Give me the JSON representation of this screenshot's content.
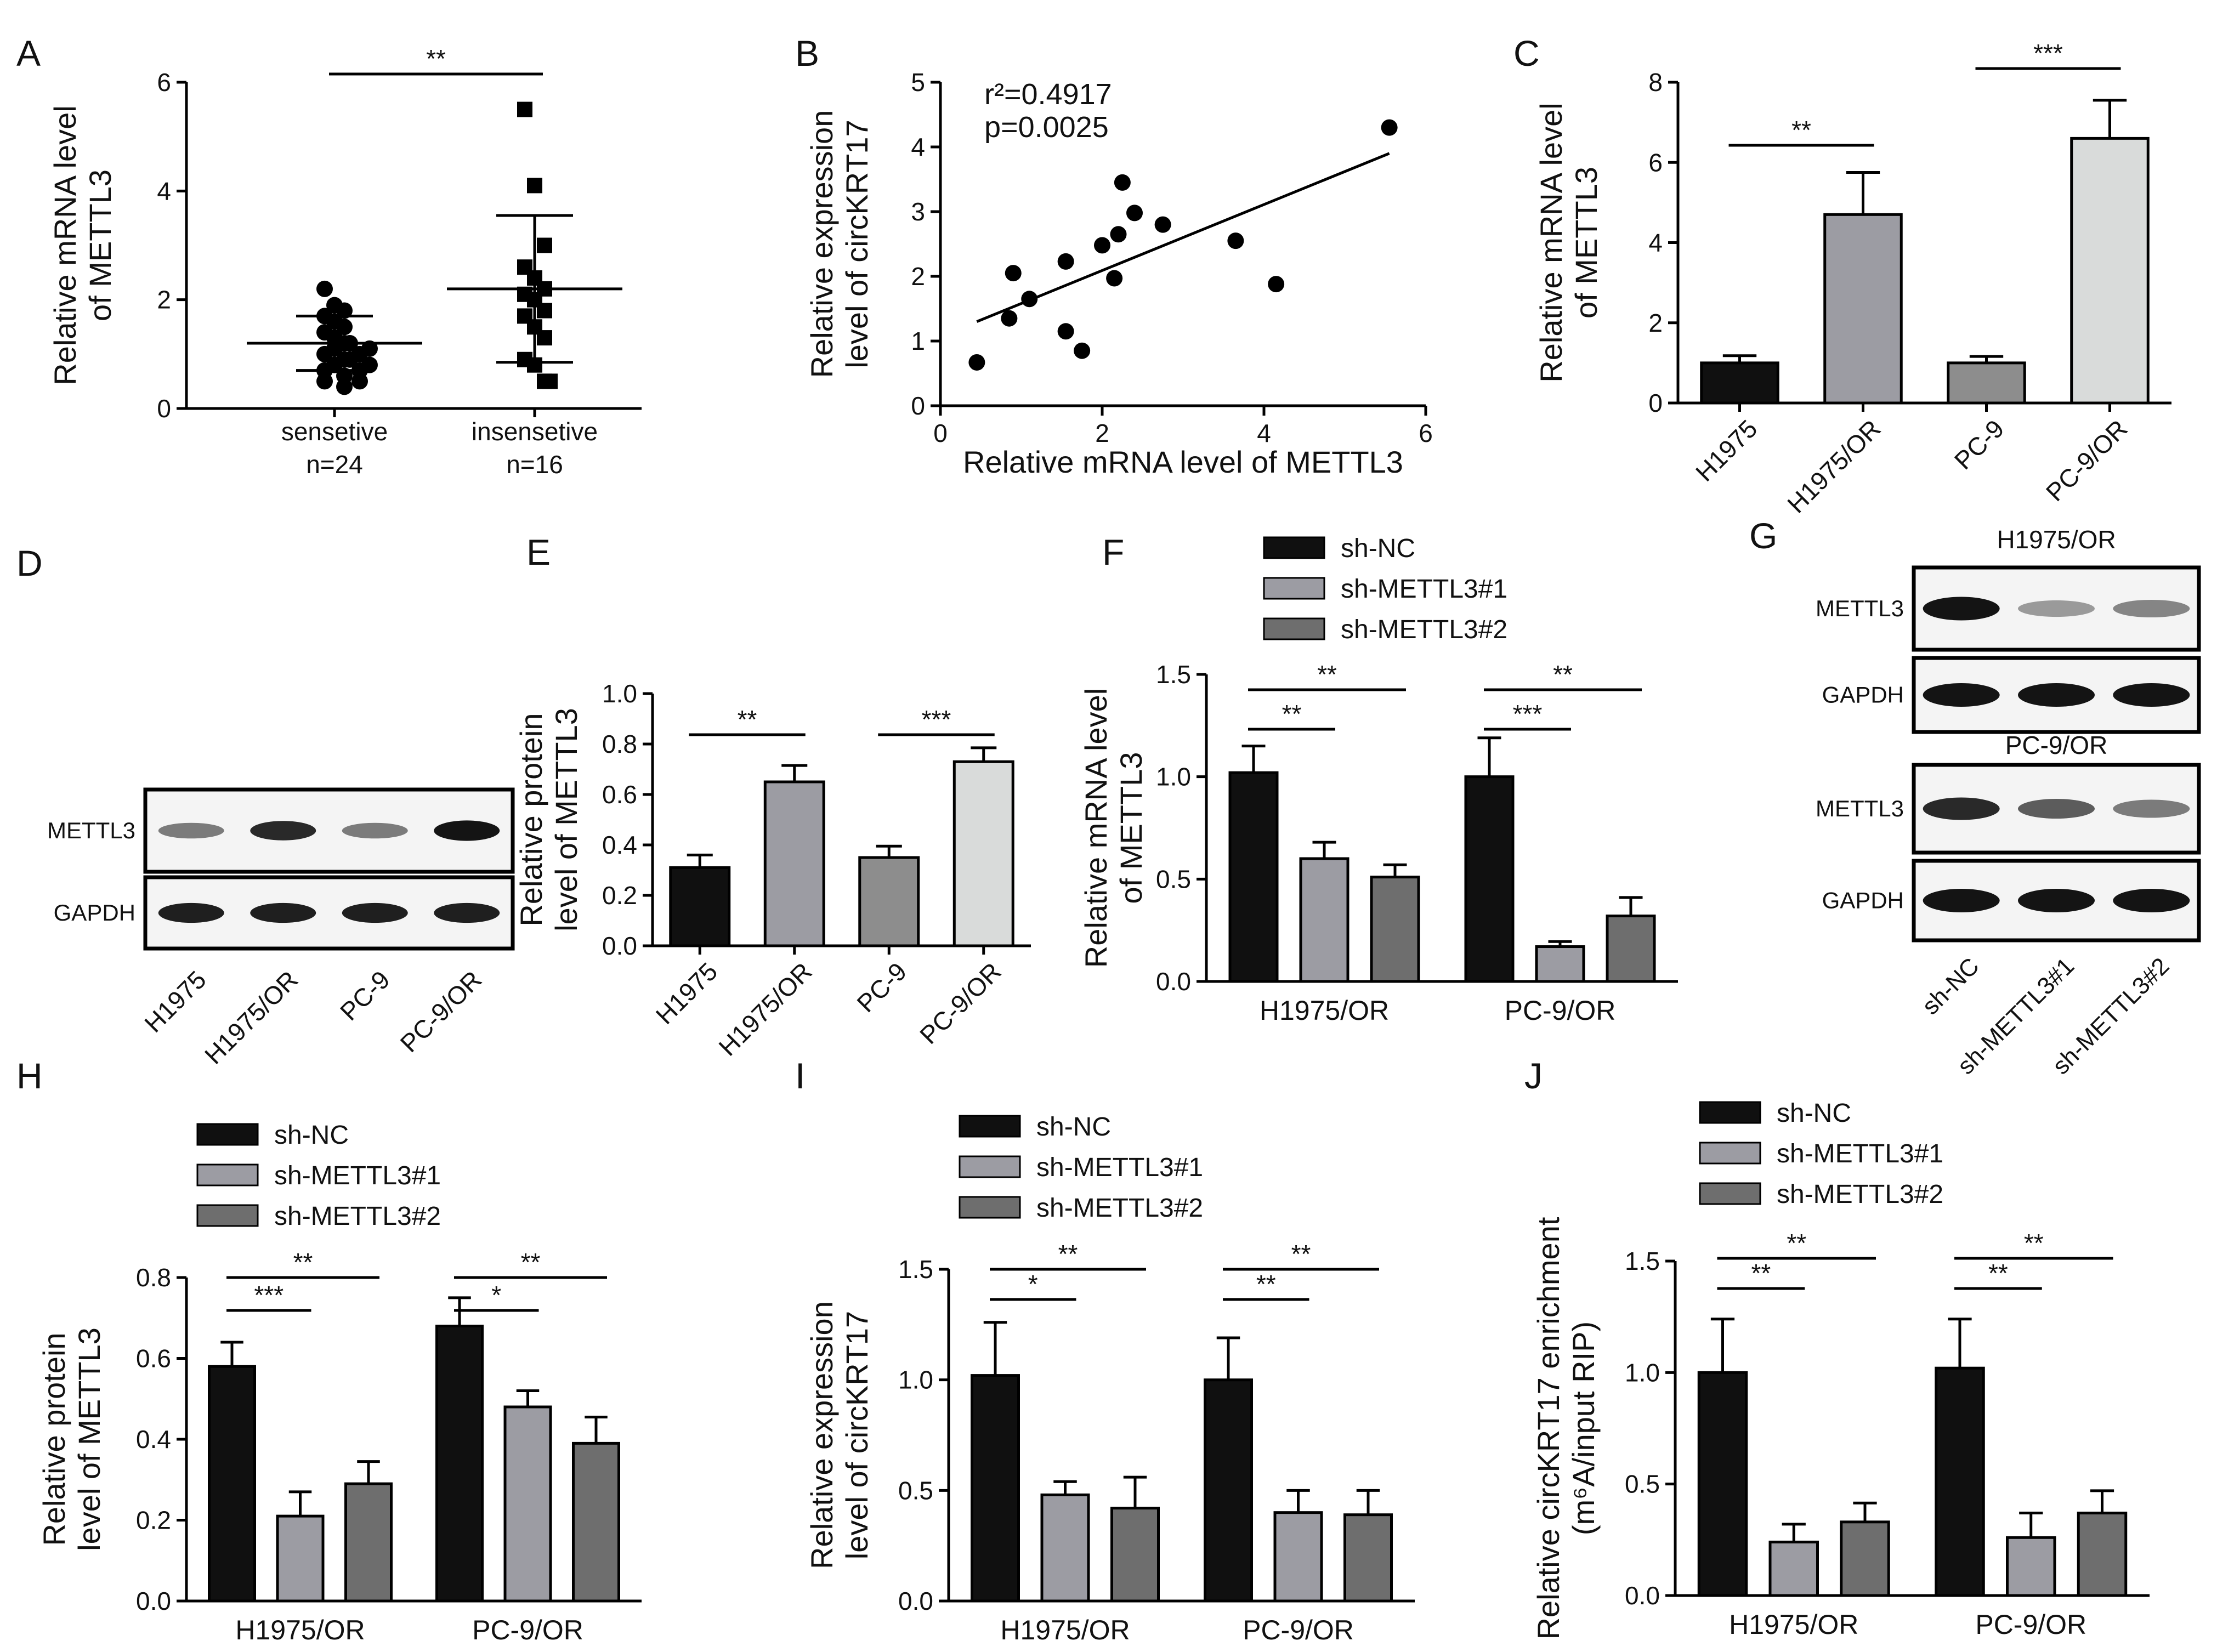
{
  "figure": {
    "colors": {
      "black": "#101010",
      "gray1": "#9c9ca3",
      "gray2": "#6e6e6e",
      "light": "#d9dbda",
      "mid": "#8d8d8d",
      "sig": "#000000",
      "text": "#111111"
    }
  },
  "chart_data": [
    {
      "panel": "A",
      "type": "scatter",
      "ylabel_lines": [
        "Relative mRNA level",
        "of METTL3"
      ],
      "ylim": [
        0,
        6
      ],
      "yticks": [
        0,
        2,
        4,
        6
      ],
      "categories": [
        "sensetive",
        "insensetive"
      ],
      "category_sub": [
        "n=24",
        "n=16"
      ],
      "series": [
        {
          "name": "sensetive",
          "marker": "circle",
          "mean": 1.2,
          "sd": 0.5,
          "points": [
            2.2,
            1.9,
            1.8,
            1.7,
            1.6,
            1.5,
            1.4,
            1.3,
            1.2,
            1.2,
            1.1,
            1.1,
            1.0,
            1.0,
            0.9,
            0.9,
            0.8,
            0.8,
            0.7,
            0.7,
            0.6,
            0.5,
            0.5,
            0.4
          ]
        },
        {
          "name": "insensetive",
          "marker": "square",
          "mean": 2.2,
          "sd": 1.35,
          "points": [
            5.5,
            4.1,
            3.0,
            2.6,
            2.4,
            2.2,
            2.1,
            2.0,
            1.8,
            1.7,
            1.5,
            1.3,
            0.9,
            0.8,
            0.5,
            0.5
          ]
        }
      ],
      "sig": [
        {
          "from": 0,
          "to": 1,
          "label": "**"
        }
      ]
    },
    {
      "panel": "B",
      "type": "scatter",
      "xlabel": "Relative mRNA level of METTL3",
      "ylabel_lines": [
        "Relative expression",
        "level of circKRT17"
      ],
      "xlim": [
        0,
        6
      ],
      "ylim": [
        0,
        5
      ],
      "xticks": [
        0,
        2,
        4,
        6
      ],
      "yticks": [
        0,
        1,
        2,
        3,
        4,
        5
      ],
      "annotations": [
        "r²=0.4917",
        "p=0.0025"
      ],
      "x": [
        0.45,
        0.85,
        0.9,
        1.1,
        1.55,
        1.55,
        1.75,
        2.0,
        2.15,
        2.2,
        2.25,
        2.4,
        2.75,
        3.65,
        4.15,
        5.55
      ],
      "y": [
        0.67,
        1.35,
        2.05,
        1.65,
        1.15,
        2.23,
        0.85,
        2.48,
        1.97,
        2.65,
        3.45,
        2.98,
        2.8,
        2.55,
        1.88,
        4.3
      ],
      "fit": [
        [
          0.45,
          1.3
        ],
        [
          5.55,
          3.9
        ]
      ]
    },
    {
      "panel": "C",
      "type": "bar",
      "ylabel_lines": [
        "Relative mRNA level",
        "of METTL3"
      ],
      "ylim": [
        0,
        8
      ],
      "yticks": [
        0,
        2,
        4,
        6,
        8
      ],
      "categories": [
        "H1975",
        "H1975/OR",
        "PC-9",
        "PC-9/OR"
      ],
      "values": [
        1.0,
        4.7,
        1.0,
        6.6
      ],
      "errors": [
        0.18,
        1.05,
        0.16,
        0.95
      ],
      "sig": [
        {
          "from": 0,
          "to": 1,
          "label": "**"
        },
        {
          "from": 2,
          "to": 3,
          "label": "***"
        }
      ]
    },
    {
      "panel": "E",
      "type": "bar",
      "ylabel_lines": [
        "Relative protein",
        "level of METTL3"
      ],
      "ylim": [
        0,
        1.0
      ],
      "yticks": [
        0,
        0.2,
        0.4,
        0.6,
        0.8,
        1.0
      ],
      "categories": [
        "H1975",
        "H1975/OR",
        "PC-9",
        "PC-9/OR"
      ],
      "values": [
        0.31,
        0.65,
        0.35,
        0.73
      ],
      "errors": [
        0.05,
        0.065,
        0.045,
        0.055
      ],
      "sig": [
        {
          "from": 0,
          "to": 1,
          "label": "**"
        },
        {
          "from": 2,
          "to": 3,
          "label": "***"
        }
      ]
    },
    {
      "panel": "F",
      "type": "bar",
      "ylabel_lines": [
        "Relative mRNA level",
        "of METTL3"
      ],
      "ylim": [
        0,
        1.5
      ],
      "yticks": [
        0,
        0.5,
        1.0,
        1.5
      ],
      "categories": [
        "H1975/OR",
        "PC-9/OR"
      ],
      "series": [
        {
          "name": "sh-NC",
          "values": [
            1.02,
            1.0
          ],
          "errors": [
            0.13,
            0.19
          ]
        },
        {
          "name": "sh-METTL3#1",
          "values": [
            0.6,
            0.17
          ],
          "errors": [
            0.08,
            0.025
          ]
        },
        {
          "name": "sh-METTL3#2",
          "values": [
            0.51,
            0.32
          ],
          "errors": [
            0.06,
            0.09
          ]
        }
      ],
      "sig": [
        {
          "group": 0,
          "from": 0,
          "to": 1,
          "label": "**",
          "level": 1
        },
        {
          "group": 0,
          "from": 0,
          "to": 2,
          "label": "**",
          "level": 2
        },
        {
          "group": 1,
          "from": 0,
          "to": 1,
          "label": "***",
          "level": 1
        },
        {
          "group": 1,
          "from": 0,
          "to": 2,
          "label": "**",
          "level": 2
        }
      ]
    },
    {
      "panel": "H",
      "type": "bar",
      "ylabel_lines": [
        "Relative protein",
        "level of METTL3"
      ],
      "ylim": [
        0,
        0.8
      ],
      "yticks": [
        0,
        0.2,
        0.4,
        0.6,
        0.8
      ],
      "categories": [
        "H1975/OR",
        "PC-9/OR"
      ],
      "series": [
        {
          "name": "sh-NC",
          "values": [
            0.58,
            0.68
          ],
          "errors": [
            0.06,
            0.07
          ]
        },
        {
          "name": "sh-METTL3#1",
          "values": [
            0.21,
            0.48
          ],
          "errors": [
            0.06,
            0.04
          ]
        },
        {
          "name": "sh-METTL3#2",
          "values": [
            0.29,
            0.39
          ],
          "errors": [
            0.055,
            0.065
          ]
        }
      ],
      "sig": [
        {
          "group": 0,
          "from": 0,
          "to": 1,
          "label": "***",
          "level": 1
        },
        {
          "group": 0,
          "from": 0,
          "to": 2,
          "label": "**",
          "level": 2
        },
        {
          "group": 1,
          "from": 0,
          "to": 1,
          "label": "*",
          "level": 1
        },
        {
          "group": 1,
          "from": 0,
          "to": 2,
          "label": "**",
          "level": 2
        }
      ]
    },
    {
      "panel": "I",
      "type": "bar",
      "ylabel_lines": [
        "Relative expression",
        "level of circKRT17"
      ],
      "ylim": [
        0,
        1.5
      ],
      "yticks": [
        0,
        0.5,
        1.0,
        1.5
      ],
      "categories": [
        "H1975/OR",
        "PC-9/OR"
      ],
      "series": [
        {
          "name": "sh-NC",
          "values": [
            1.02,
            1.0
          ],
          "errors": [
            0.24,
            0.19
          ]
        },
        {
          "name": "sh-METTL3#1",
          "values": [
            0.48,
            0.4
          ],
          "errors": [
            0.06,
            0.1
          ]
        },
        {
          "name": "sh-METTL3#2",
          "values": [
            0.42,
            0.39
          ],
          "errors": [
            0.14,
            0.11
          ]
        }
      ],
      "sig": [
        {
          "group": 0,
          "from": 0,
          "to": 1,
          "label": "*",
          "level": 1
        },
        {
          "group": 0,
          "from": 0,
          "to": 2,
          "label": "**",
          "level": 2
        },
        {
          "group": 1,
          "from": 0,
          "to": 1,
          "label": "**",
          "level": 1
        },
        {
          "group": 1,
          "from": 0,
          "to": 2,
          "label": "**",
          "level": 2
        }
      ]
    },
    {
      "panel": "J",
      "type": "bar",
      "ylabel_lines": [
        "Relative circKRT17 enrichment",
        "(m⁶A/input RIP)"
      ],
      "ylim": [
        0,
        1.5
      ],
      "yticks": [
        0,
        0.5,
        1.0,
        1.5
      ],
      "categories": [
        "H1975/OR",
        "PC-9/OR"
      ],
      "series": [
        {
          "name": "sh-NC",
          "values": [
            1.0,
            1.02
          ],
          "errors": [
            0.24,
            0.22
          ]
        },
        {
          "name": "sh-METTL3#1",
          "values": [
            0.24,
            0.26
          ],
          "errors": [
            0.08,
            0.11
          ]
        },
        {
          "name": "sh-METTL3#2",
          "values": [
            0.33,
            0.37
          ],
          "errors": [
            0.085,
            0.1
          ]
        }
      ],
      "sig": [
        {
          "group": 0,
          "from": 0,
          "to": 1,
          "label": "**",
          "level": 1
        },
        {
          "group": 0,
          "from": 0,
          "to": 2,
          "label": "**",
          "level": 2
        },
        {
          "group": 1,
          "from": 0,
          "to": 1,
          "label": "**",
          "level": 1
        },
        {
          "group": 1,
          "from": 0,
          "to": 2,
          "label": "**",
          "level": 2
        }
      ]
    }
  ],
  "blots": {
    "D": {
      "rows": [
        "METTL3",
        "GAPDH"
      ],
      "lanes": [
        "H1975",
        "H1975/OR",
        "PC-9",
        "PC-9/OR"
      ],
      "intensity": [
        [
          0.45,
          0.85,
          0.45,
          0.95
        ],
        [
          0.9,
          0.9,
          0.9,
          0.9
        ]
      ]
    },
    "G": {
      "group1_title": "H1975/OR",
      "group2_title": "PC-9/OR",
      "rows": [
        "METTL3",
        "GAPDH",
        "METTL3",
        "GAPDH"
      ],
      "lanes": [
        "sh-NC",
        "sh-METTL3#1",
        "sh-METTL3#2"
      ],
      "intensity": [
        [
          0.95,
          0.3,
          0.4
        ],
        [
          0.95,
          0.95,
          0.95
        ],
        [
          0.85,
          0.6,
          0.45
        ],
        [
          0.95,
          0.95,
          0.95
        ]
      ]
    }
  }
}
